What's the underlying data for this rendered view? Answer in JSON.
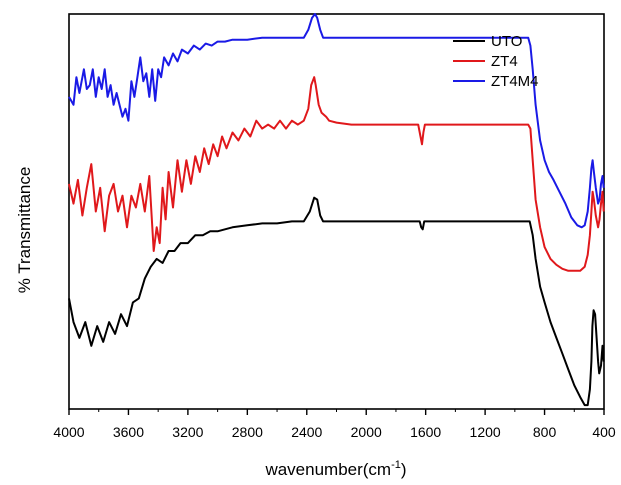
{
  "chart_data": {
    "type": "line",
    "xlabel": "wavenumber(cm",
    "xlabel_sup": "-1",
    "xlabel_close": ")",
    "ylabel": "% Transmittance",
    "xlim": [
      4000,
      400
    ],
    "x_reversed": true,
    "ylim": [
      0,
      100
    ],
    "y_ticks_shown": false,
    "grid": false,
    "legend_position": "top-right",
    "x_ticks": [
      4000,
      3600,
      3200,
      2800,
      2400,
      2000,
      1600,
      1200,
      800,
      400
    ],
    "x_tick_labels": [
      "4000",
      "3600",
      "3200",
      "2800",
      "2400",
      "2000",
      "1600",
      "1200",
      "800",
      "400"
    ],
    "series": [
      {
        "name": "UTO",
        "color": "#000000",
        "points": [
          [
            4000,
            28
          ],
          [
            3970,
            22
          ],
          [
            3930,
            18
          ],
          [
            3890,
            22
          ],
          [
            3850,
            16
          ],
          [
            3810,
            21
          ],
          [
            3770,
            17
          ],
          [
            3730,
            22
          ],
          [
            3690,
            19
          ],
          [
            3650,
            24
          ],
          [
            3610,
            21
          ],
          [
            3570,
            27
          ],
          [
            3530,
            28
          ],
          [
            3490,
            33
          ],
          [
            3450,
            36
          ],
          [
            3410,
            38
          ],
          [
            3370,
            37
          ],
          [
            3330,
            40
          ],
          [
            3290,
            40
          ],
          [
            3250,
            42
          ],
          [
            3200,
            42
          ],
          [
            3150,
            44
          ],
          [
            3100,
            44
          ],
          [
            3050,
            45
          ],
          [
            3000,
            45
          ],
          [
            2950,
            45.5
          ],
          [
            2900,
            46
          ],
          [
            2800,
            46.5
          ],
          [
            2700,
            47
          ],
          [
            2600,
            47
          ],
          [
            2500,
            47.5
          ],
          [
            2420,
            47.5
          ],
          [
            2380,
            50
          ],
          [
            2350,
            53.5
          ],
          [
            2330,
            53
          ],
          [
            2310,
            49
          ],
          [
            2290,
            47.5
          ],
          [
            2200,
            47.5
          ],
          [
            2000,
            47.5
          ],
          [
            1800,
            47.5
          ],
          [
            1640,
            47.5
          ],
          [
            1630,
            46
          ],
          [
            1620,
            45.5
          ],
          [
            1610,
            47.5
          ],
          [
            1400,
            47.5
          ],
          [
            1200,
            47.5
          ],
          [
            1000,
            47.5
          ],
          [
            900,
            47.5
          ],
          [
            880,
            44
          ],
          [
            860,
            38
          ],
          [
            830,
            31
          ],
          [
            800,
            27
          ],
          [
            760,
            22
          ],
          [
            720,
            18
          ],
          [
            680,
            14
          ],
          [
            640,
            10
          ],
          [
            600,
            6
          ],
          [
            560,
            3
          ],
          [
            530,
            1
          ],
          [
            510,
            1
          ],
          [
            495,
            5
          ],
          [
            485,
            12
          ],
          [
            478,
            21
          ],
          [
            470,
            25
          ],
          [
            460,
            24
          ],
          [
            450,
            18
          ],
          [
            440,
            12
          ],
          [
            432,
            9
          ],
          [
            420,
            11
          ],
          [
            410,
            16
          ],
          [
            402,
            12
          ]
        ]
      },
      {
        "name": "ZT4",
        "color": "#e0181b",
        "points": [
          [
            4000,
            57
          ],
          [
            3970,
            52
          ],
          [
            3940,
            58
          ],
          [
            3910,
            49
          ],
          [
            3880,
            56
          ],
          [
            3850,
            62
          ],
          [
            3820,
            50
          ],
          [
            3790,
            56
          ],
          [
            3760,
            45
          ],
          [
            3730,
            54
          ],
          [
            3700,
            57
          ],
          [
            3670,
            50
          ],
          [
            3640,
            54
          ],
          [
            3610,
            46
          ],
          [
            3580,
            54
          ],
          [
            3550,
            51
          ],
          [
            3520,
            57
          ],
          [
            3490,
            50
          ],
          [
            3460,
            59
          ],
          [
            3430,
            40
          ],
          [
            3410,
            46
          ],
          [
            3390,
            42
          ],
          [
            3370,
            56
          ],
          [
            3350,
            48
          ],
          [
            3330,
            60
          ],
          [
            3300,
            51
          ],
          [
            3270,
            63
          ],
          [
            3240,
            55
          ],
          [
            3210,
            63
          ],
          [
            3180,
            57
          ],
          [
            3150,
            64
          ],
          [
            3120,
            60
          ],
          [
            3090,
            66
          ],
          [
            3060,
            62
          ],
          [
            3030,
            67
          ],
          [
            3000,
            64
          ],
          [
            2970,
            69
          ],
          [
            2940,
            66
          ],
          [
            2900,
            70
          ],
          [
            2860,
            68
          ],
          [
            2820,
            71
          ],
          [
            2780,
            69
          ],
          [
            2740,
            73
          ],
          [
            2700,
            71
          ],
          [
            2660,
            72
          ],
          [
            2620,
            71
          ],
          [
            2580,
            73
          ],
          [
            2540,
            71
          ],
          [
            2500,
            73
          ],
          [
            2460,
            72
          ],
          [
            2420,
            73
          ],
          [
            2390,
            76
          ],
          [
            2370,
            82
          ],
          [
            2350,
            84
          ],
          [
            2340,
            82
          ],
          [
            2320,
            77
          ],
          [
            2300,
            75
          ],
          [
            2270,
            74
          ],
          [
            2250,
            73
          ],
          [
            2200,
            72.5
          ],
          [
            2100,
            72
          ],
          [
            2000,
            72
          ],
          [
            1900,
            72
          ],
          [
            1800,
            72
          ],
          [
            1700,
            72
          ],
          [
            1650,
            72
          ],
          [
            1635,
            69
          ],
          [
            1625,
            67
          ],
          [
            1615,
            70
          ],
          [
            1605,
            72
          ],
          [
            1400,
            72
          ],
          [
            1200,
            72
          ],
          [
            1000,
            72
          ],
          [
            910,
            72
          ],
          [
            895,
            71
          ],
          [
            880,
            63
          ],
          [
            860,
            53
          ],
          [
            830,
            46
          ],
          [
            800,
            41
          ],
          [
            760,
            38
          ],
          [
            720,
            36.5
          ],
          [
            680,
            35.5
          ],
          [
            640,
            35
          ],
          [
            600,
            35
          ],
          [
            560,
            35
          ],
          [
            530,
            36
          ],
          [
            510,
            39
          ],
          [
            495,
            44
          ],
          [
            485,
            50
          ],
          [
            477,
            55
          ],
          [
            468,
            53
          ],
          [
            455,
            49
          ],
          [
            440,
            46
          ],
          [
            430,
            48
          ],
          [
            420,
            52
          ],
          [
            410,
            55
          ],
          [
            402,
            50
          ]
        ]
      },
      {
        "name": "ZT4M4",
        "color": "#1a1ae6",
        "points": [
          [
            4000,
            79
          ],
          [
            3970,
            77
          ],
          [
            3950,
            84
          ],
          [
            3930,
            80
          ],
          [
            3900,
            86
          ],
          [
            3880,
            81
          ],
          [
            3860,
            82
          ],
          [
            3840,
            86
          ],
          [
            3820,
            79
          ],
          [
            3800,
            84
          ],
          [
            3780,
            81
          ],
          [
            3760,
            86
          ],
          [
            3740,
            79
          ],
          [
            3720,
            82
          ],
          [
            3700,
            77
          ],
          [
            3680,
            80
          ],
          [
            3660,
            77
          ],
          [
            3640,
            74
          ],
          [
            3620,
            76
          ],
          [
            3600,
            73
          ],
          [
            3580,
            83
          ],
          [
            3560,
            79
          ],
          [
            3540,
            84
          ],
          [
            3520,
            89
          ],
          [
            3500,
            83
          ],
          [
            3480,
            85
          ],
          [
            3460,
            79
          ],
          [
            3440,
            86
          ],
          [
            3420,
            78
          ],
          [
            3400,
            86
          ],
          [
            3380,
            84
          ],
          [
            3360,
            89
          ],
          [
            3330,
            87
          ],
          [
            3300,
            90
          ],
          [
            3270,
            88
          ],
          [
            3240,
            91
          ],
          [
            3200,
            90
          ],
          [
            3160,
            92
          ],
          [
            3120,
            91
          ],
          [
            3080,
            92.5
          ],
          [
            3040,
            92
          ],
          [
            3000,
            93
          ],
          [
            2950,
            93
          ],
          [
            2900,
            93.5
          ],
          [
            2800,
            93.5
          ],
          [
            2700,
            94
          ],
          [
            2600,
            94
          ],
          [
            2500,
            94
          ],
          [
            2420,
            94
          ],
          [
            2390,
            96
          ],
          [
            2365,
            99
          ],
          [
            2345,
            100
          ],
          [
            2330,
            99
          ],
          [
            2310,
            96
          ],
          [
            2290,
            94
          ],
          [
            2200,
            94
          ],
          [
            2000,
            94
          ],
          [
            1800,
            94
          ],
          [
            1600,
            94
          ],
          [
            1400,
            94
          ],
          [
            1200,
            94
          ],
          [
            1000,
            94
          ],
          [
            910,
            94
          ],
          [
            895,
            92
          ],
          [
            880,
            86
          ],
          [
            860,
            77
          ],
          [
            830,
            68
          ],
          [
            800,
            63
          ],
          [
            770,
            60
          ],
          [
            740,
            58
          ],
          [
            700,
            55
          ],
          [
            660,
            52
          ],
          [
            620,
            48.5
          ],
          [
            580,
            46.5
          ],
          [
            550,
            46
          ],
          [
            530,
            46.5
          ],
          [
            510,
            50
          ],
          [
            495,
            56
          ],
          [
            485,
            61
          ],
          [
            477,
            63
          ],
          [
            468,
            60
          ],
          [
            455,
            56
          ],
          [
            440,
            52
          ],
          [
            430,
            53
          ],
          [
            420,
            57
          ],
          [
            410,
            59
          ],
          [
            402,
            56
          ]
        ]
      }
    ]
  }
}
